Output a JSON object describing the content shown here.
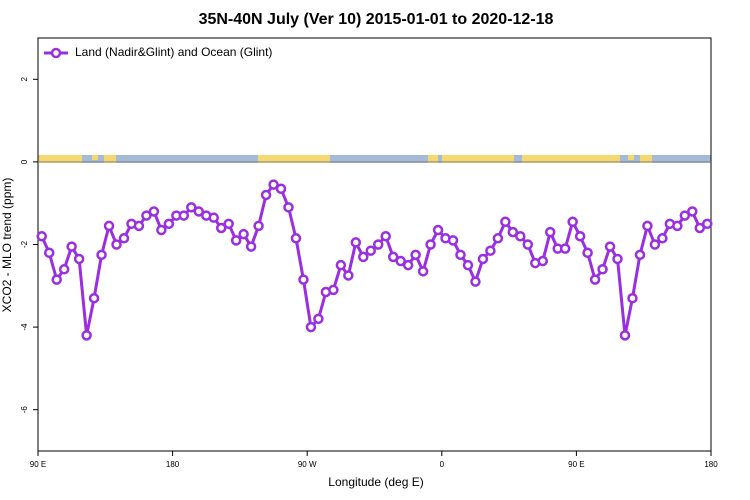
{
  "chart_data": {
    "type": "line",
    "title": "35N-40N July (Ver 10)   2015-01-01 to 2020-12-18",
    "x_label": "Longitude (deg E)",
    "y_label": "XCO2 - MLO trend (ppm)",
    "x": [
      92.5,
      97.5,
      102.5,
      107.5,
      112.5,
      117.5,
      122.5,
      127.5,
      132.5,
      137.5,
      142.5,
      147.5,
      152.5,
      157.5,
      162.5,
      167.5,
      172.5,
      177.5,
      182.5,
      187.5,
      192.5,
      197.5,
      202.5,
      207.5,
      212.5,
      217.5,
      222.5,
      227.5,
      232.5,
      237.5,
      242.5,
      247.5,
      252.5,
      257.5,
      262.5,
      267.5,
      272.5,
      277.5,
      282.5,
      287.5,
      292.5,
      297.5,
      302.5,
      307.5,
      312.5,
      317.5,
      322.5,
      327.5,
      332.5,
      337.5,
      342.5,
      347.5,
      352.5,
      357.5,
      362.5,
      367.5,
      372.5,
      377.5,
      382.5,
      387.5,
      392.5,
      397.5,
      402.5,
      407.5,
      412.5,
      417.5,
      422.5,
      427.5,
      432.5,
      437.5,
      442.5,
      447.5,
      452.5,
      457.5,
      462.5,
      467.5,
      472.5,
      477.5,
      482.5,
      487.5,
      492.5,
      497.5,
      502.5,
      507.5,
      512.5,
      517.5,
      522.5,
      527.5,
      532.5,
      537.5
    ],
    "series": [
      {
        "name": "Land (Nadir&Glint) and Ocean (Glint)",
        "color": "#9a2fe0",
        "values": [
          -1.8,
          -2.2,
          -2.85,
          -2.6,
          -2.05,
          -2.35,
          -4.2,
          -3.3,
          -2.25,
          -1.55,
          -2.0,
          -1.85,
          -1.5,
          -1.55,
          -1.3,
          -1.2,
          -1.65,
          -1.5,
          -1.3,
          -1.3,
          -1.1,
          -1.2,
          -1.3,
          -1.35,
          -1.6,
          -1.5,
          -1.9,
          -1.75,
          -2.05,
          -1.55,
          -0.8,
          -0.55,
          -0.65,
          -1.1,
          -1.85,
          -2.85,
          -4.0,
          -3.8,
          -3.15,
          -3.1,
          -2.5,
          -2.75,
          -1.95,
          -2.3,
          -2.15,
          -2.0,
          -1.8,
          -2.3,
          -2.4,
          -2.5,
          -2.25,
          -2.65,
          -2.0,
          -1.65,
          -1.85,
          -1.9,
          -2.25,
          -2.5,
          -2.9,
          -2.35,
          -2.15,
          -1.85,
          -1.45,
          -1.7,
          -1.8,
          -2.0,
          -2.45,
          -2.4,
          -1.7,
          -2.1,
          -2.1,
          -1.45,
          -1.8,
          -2.2,
          -2.85,
          -2.6,
          -2.05,
          -2.35,
          -4.2,
          -3.3,
          -2.25,
          -1.55,
          -2.0,
          -1.85,
          -1.5,
          -1.55,
          -1.3,
          -1.2,
          -1.6,
          -1.5
        ]
      }
    ],
    "xlim": [
      90,
      540
    ],
    "xticks": [
      {
        "value": 90,
        "label": "90 E"
      },
      180,
      {
        "value": 270,
        "label": "90 W"
      },
      {
        "value": 360,
        "label": "0"
      },
      {
        "value": 450,
        "label": "90 E"
      },
      {
        "value": 540,
        "label": "180"
      }
    ],
    "ylim": [
      -7,
      3
    ],
    "yticks": [
      -6,
      -4,
      -2,
      0,
      2
    ],
    "zero_line": true,
    "grid": false,
    "legend": "top-left"
  }
}
